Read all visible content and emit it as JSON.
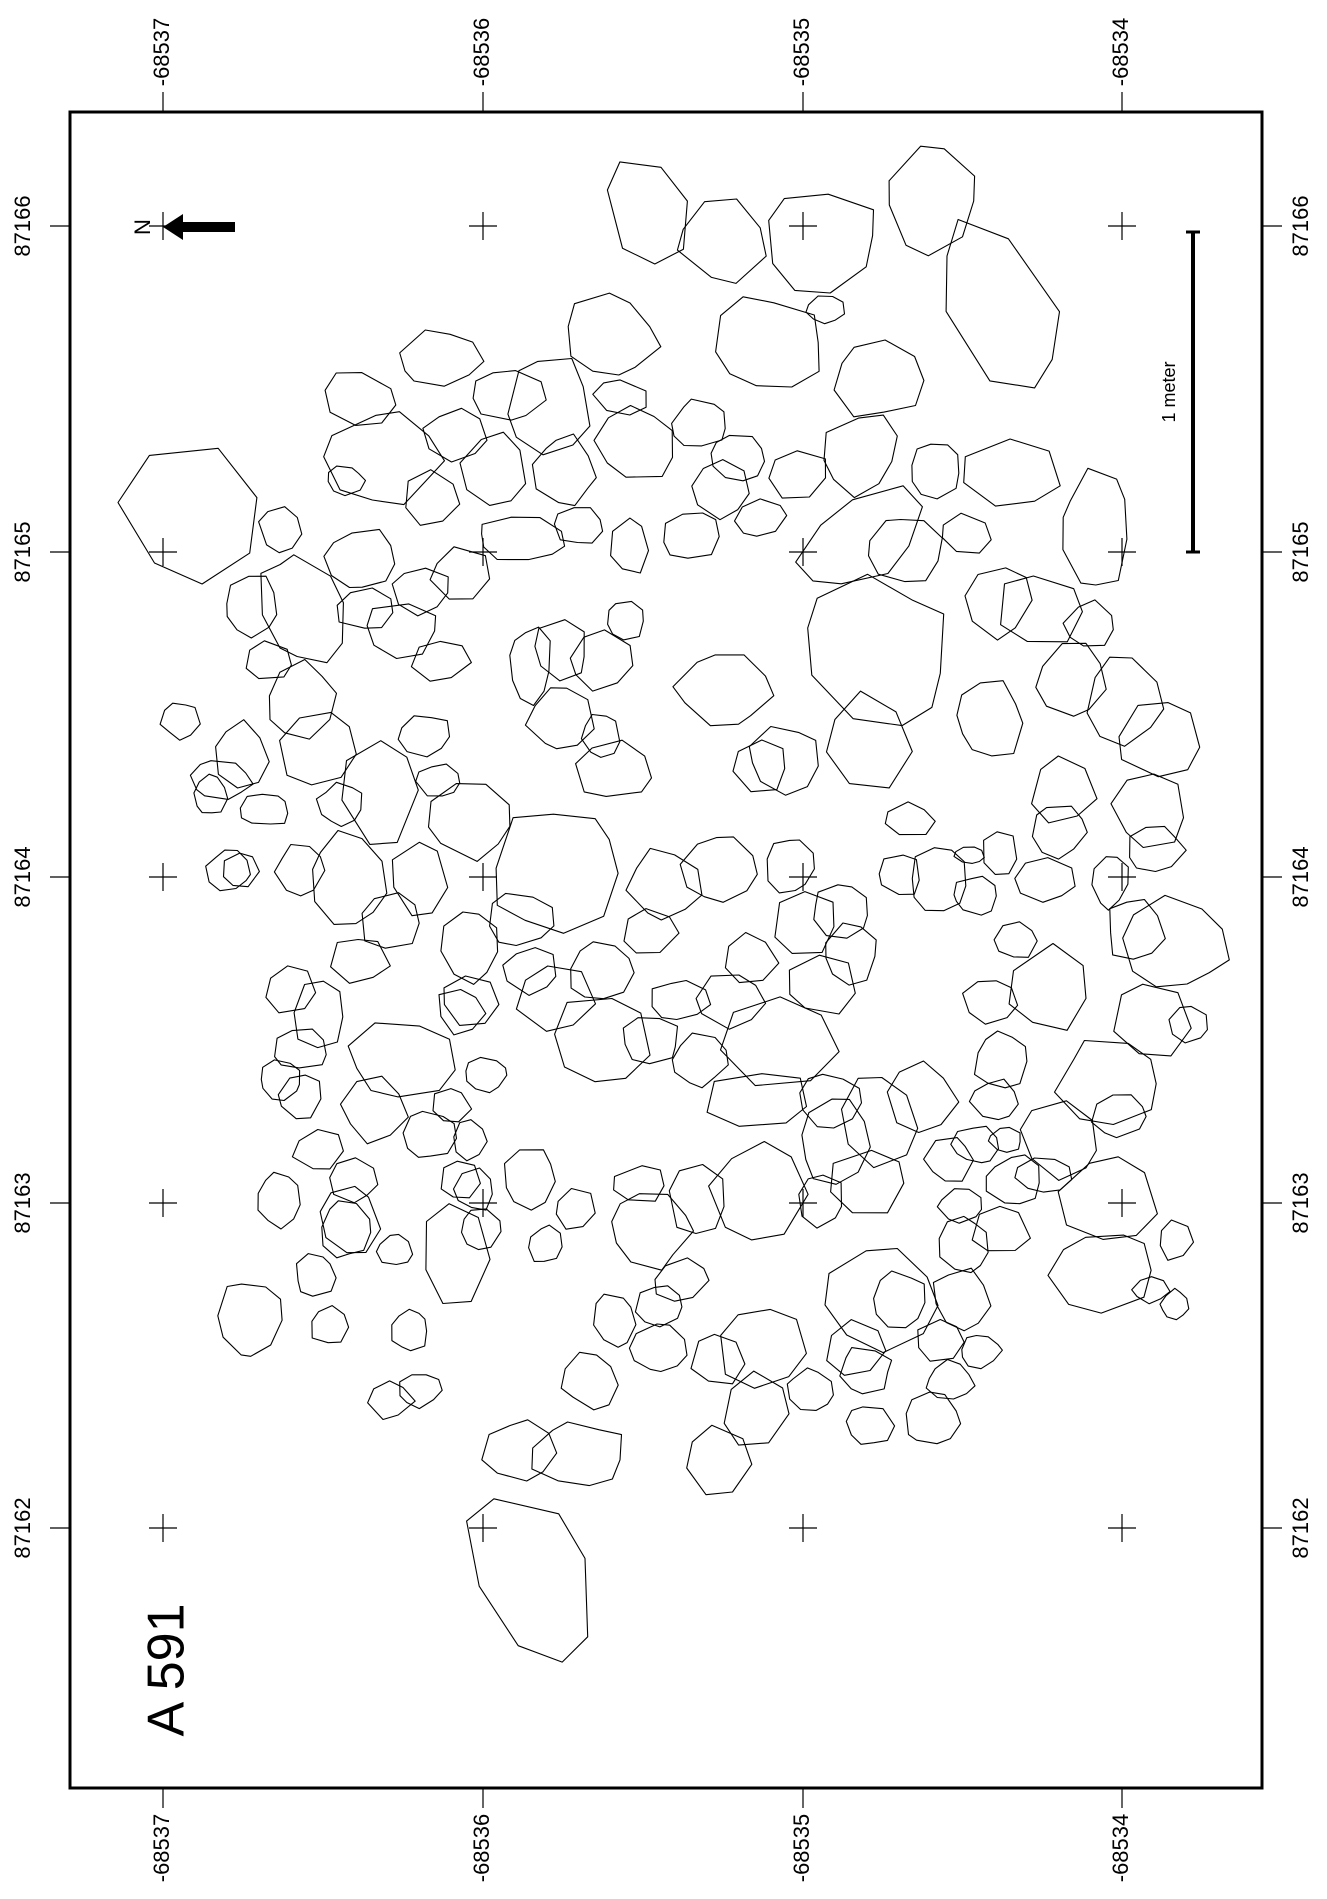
{
  "title": "A 591",
  "north_label": "N",
  "scale_label": "1 meter",
  "grid": {
    "columns": [
      "87166",
      "87165",
      "87164",
      "87163",
      "87162"
    ],
    "rows": [
      "68537",
      "68536",
      "68535",
      "68534"
    ],
    "row_values_raw": [
      "-68537",
      "-68536",
      "-68535",
      "-68534"
    ]
  },
  "colors": {
    "line": "#000000",
    "background": "#ffffff"
  }
}
